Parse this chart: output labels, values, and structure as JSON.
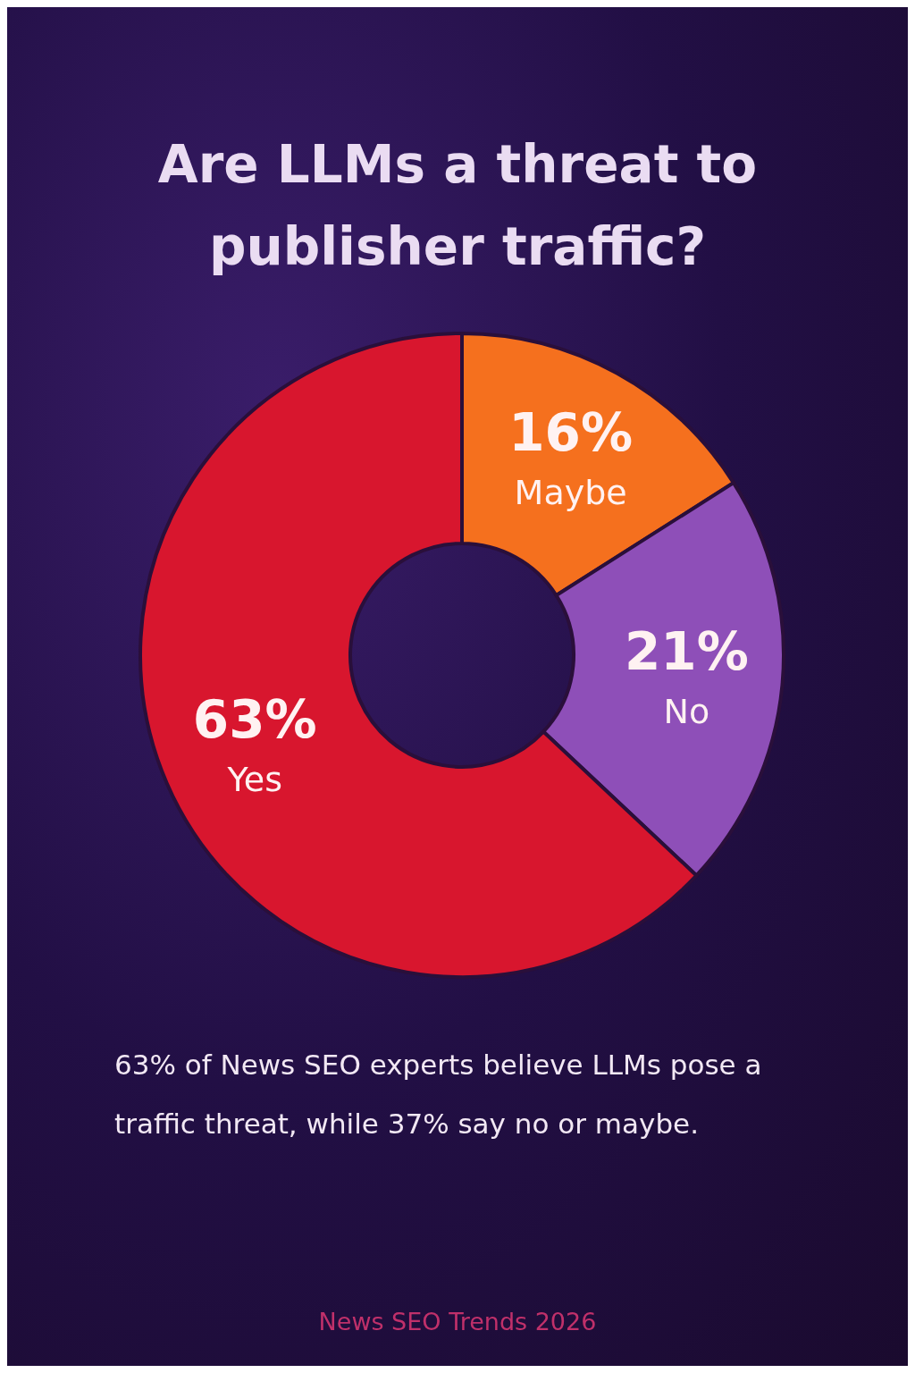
{
  "chart_data": {
    "type": "donut",
    "title": "Are LLMs a threat to publisher traffic?",
    "categories": [
      "Maybe",
      "No",
      "Yes"
    ],
    "values": [
      16,
      21,
      63
    ],
    "value_labels": [
      "16%",
      "21%",
      "63%"
    ],
    "colors": [
      "#f5701e",
      "#8e4fb8",
      "#d8162e"
    ],
    "legend": false,
    "annotations": [
      "63% of News SEO experts believe LLMs pose a traffic threat, while 37% say no or maybe.",
      "News SEO Trends 2026"
    ]
  }
}
